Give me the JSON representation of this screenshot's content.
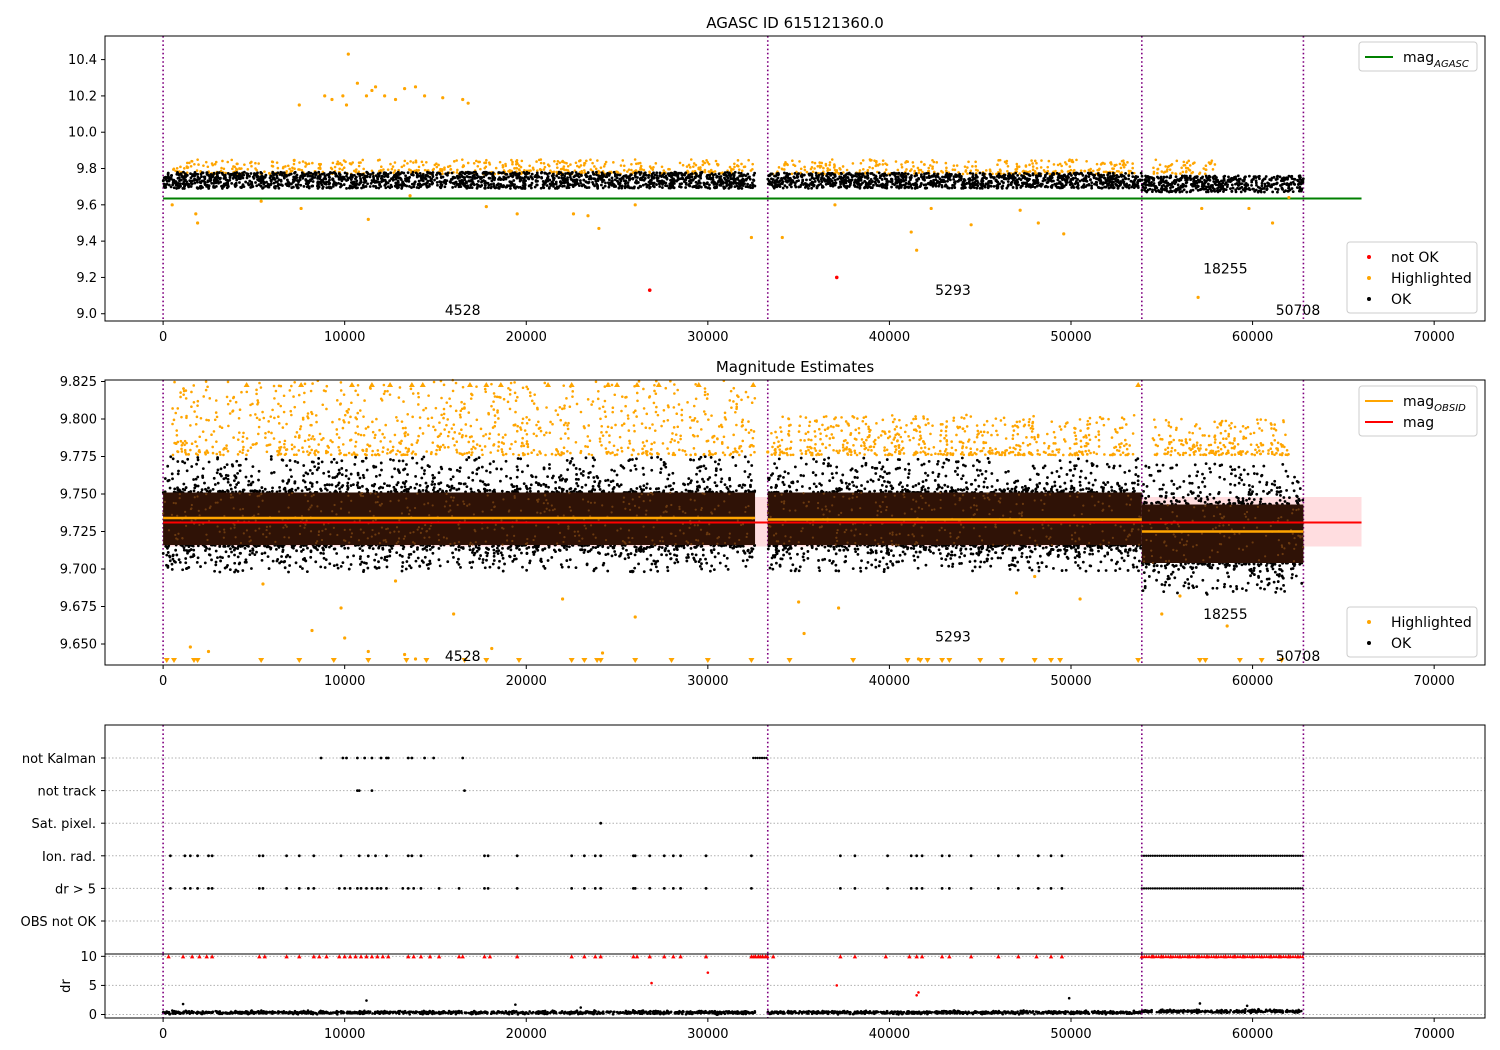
{
  "chart_data": [
    {
      "type": "scatter",
      "title": "AGASC ID 615121360.0",
      "xlim": [
        -3200,
        72800
      ],
      "ylim": [
        8.96,
        10.53
      ],
      "xticks": [
        0,
        10000,
        20000,
        30000,
        40000,
        50000,
        60000,
        70000
      ],
      "yticks": [
        9.0,
        9.2,
        9.4,
        9.6,
        9.8,
        10.0,
        10.2,
        10.4
      ],
      "ytick_decimals": 1,
      "vlines": [
        0,
        33300,
        53900,
        62800
      ],
      "segments": [
        {
          "x0": 0,
          "x1": 32600,
          "center": 9.735,
          "width": 0.1
        },
        {
          "x0": 33300,
          "x1": 53900,
          "center": 9.733,
          "width": 0.095
        },
        {
          "x0": 53900,
          "x1": 62800,
          "center": 9.715,
          "width": 0.1
        }
      ],
      "hline": {
        "y": 9.635,
        "x0": 0,
        "x1": 66000,
        "color": "#008000"
      },
      "obsid_labels": [
        {
          "text": "4528",
          "x": 16500,
          "y": 9.02
        },
        {
          "text": "5293",
          "x": 43500,
          "y": 9.13
        },
        {
          "text": "18255",
          "x": 58500,
          "y": 9.25
        },
        {
          "text": "50708",
          "x": 62500,
          "y": 9.02
        }
      ],
      "highlighted_upper": {
        "y0": 9.77,
        "y1": 9.85,
        "x_ranges": [
          [
            500,
            32600
          ],
          [
            33500,
            53500
          ],
          [
            54500,
            58000
          ]
        ]
      },
      "outliers_highlighted": [
        [
          7500,
          10.15
        ],
        [
          8900,
          10.2
        ],
        [
          9300,
          10.18
        ],
        [
          9900,
          10.2
        ],
        [
          10100,
          10.15
        ],
        [
          10200,
          10.43
        ],
        [
          10700,
          10.27
        ],
        [
          11200,
          10.2
        ],
        [
          11500,
          10.23
        ],
        [
          11700,
          10.25
        ],
        [
          12200,
          10.2
        ],
        [
          12800,
          10.18
        ],
        [
          13300,
          10.24
        ],
        [
          13900,
          10.25
        ],
        [
          14400,
          10.2
        ],
        [
          15400,
          10.19
        ],
        [
          16500,
          10.18
        ],
        [
          16800,
          10.16
        ],
        [
          500,
          9.6
        ],
        [
          1800,
          9.55
        ],
        [
          1900,
          9.5
        ],
        [
          5400,
          9.62
        ],
        [
          7600,
          9.58
        ],
        [
          11300,
          9.52
        ],
        [
          13600,
          9.65
        ],
        [
          17800,
          9.59
        ],
        [
          19500,
          9.55
        ],
        [
          22600,
          9.55
        ],
        [
          23400,
          9.54
        ],
        [
          24000,
          9.47
        ],
        [
          26000,
          9.6
        ],
        [
          32400,
          9.42
        ],
        [
          34100,
          9.42
        ],
        [
          37000,
          9.6
        ],
        [
          41200,
          9.45
        ],
        [
          41500,
          9.35
        ],
        [
          42300,
          9.58
        ],
        [
          44500,
          9.49
        ],
        [
          47200,
          9.57
        ],
        [
          48200,
          9.5
        ],
        [
          49600,
          9.44
        ],
        [
          57000,
          9.09
        ],
        [
          57200,
          9.58
        ],
        [
          59800,
          9.58
        ],
        [
          61100,
          9.5
        ],
        [
          62000,
          9.64
        ]
      ],
      "outliers_notok": [
        [
          26800,
          9.13
        ],
        [
          37100,
          9.2
        ]
      ],
      "legends": [
        {
          "position": "upper-right",
          "entries": [
            {
              "label": "mag",
              "sub": "AGASC",
              "kind": "line",
              "color": "#008000"
            }
          ]
        },
        {
          "position": "lower-right",
          "entries": [
            {
              "label": "not OK",
              "kind": "dot",
              "color": "#ff0000"
            },
            {
              "label": "Highlighted",
              "kind": "dot",
              "color": "#ffa500"
            },
            {
              "label": "OK",
              "kind": "dot",
              "color": "#000000"
            }
          ]
        }
      ]
    },
    {
      "type": "scatter",
      "title": "Magnitude Estimates",
      "xlim": [
        -3200,
        72800
      ],
      "ylim": [
        9.636,
        9.826
      ],
      "xticks": [
        0,
        10000,
        20000,
        30000,
        40000,
        50000,
        60000,
        70000
      ],
      "yticks": [
        9.65,
        9.675,
        9.7,
        9.725,
        9.75,
        9.775,
        9.8,
        9.825
      ],
      "ytick_decimals": 3,
      "vlines": [
        0,
        33300,
        53900,
        62800
      ],
      "mag_band": {
        "x0": 0,
        "x1": 66000,
        "center": 9.731,
        "low": 9.715,
        "high": 9.748
      },
      "mag_obsid": [
        {
          "x0": 0,
          "x1": 32600,
          "y": 9.734
        },
        {
          "x0": 33300,
          "x1": 53900,
          "y": 9.733
        },
        {
          "x0": 53900,
          "x1": 62800,
          "y": 9.725
        }
      ],
      "segments": [
        {
          "x0": 0,
          "x1": 32600,
          "core_low": 9.716,
          "core_high": 9.751,
          "spread_low": 9.698,
          "spread_high": 9.775
        },
        {
          "x0": 33300,
          "x1": 53900,
          "core_low": 9.716,
          "core_high": 9.751,
          "spread_low": 9.698,
          "spread_high": 9.774
        },
        {
          "x0": 53900,
          "x1": 62800,
          "core_low": 9.704,
          "core_high": 9.743,
          "spread_low": 9.683,
          "spread_high": 9.771
        }
      ],
      "highlighted_upper": [
        {
          "x0": 500,
          "x1": 32600,
          "y0": 9.776,
          "y1": 9.826
        },
        {
          "x0": 33500,
          "x1": 53500,
          "y0": 9.776,
          "y1": 9.803
        },
        {
          "x0": 54500,
          "x1": 62000,
          "y0": 9.776,
          "y1": 9.8
        }
      ],
      "triangles_down": [
        200,
        600,
        1700,
        1900,
        5400,
        7500,
        9400,
        11300,
        13400,
        14500,
        16600,
        17800,
        19600,
        22500,
        23200,
        23900,
        24100,
        26000,
        28000,
        30000,
        32400,
        34500,
        38000,
        41000,
        41700,
        42100,
        42900,
        43300,
        45000,
        46200,
        48000,
        48900,
        49400,
        53700,
        57100,
        57400,
        59300,
        60500,
        61600
      ],
      "triangles_up": [
        4600,
        7600,
        10400,
        11500,
        12500,
        13700,
        14300,
        16900,
        17800,
        18600,
        21200,
        22500,
        24500,
        25000,
        26100,
        27300,
        29500,
        32500,
        53700
      ],
      "obsid_labels": [
        {
          "text": "4528",
          "x": 16500,
          "y": 9.642
        },
        {
          "text": "5293",
          "x": 43500,
          "y": 9.655
        },
        {
          "text": "18255",
          "x": 58500,
          "y": 9.67
        },
        {
          "text": "50708",
          "x": 62500,
          "y": 9.642
        }
      ],
      "outliers_highlighted": [
        [
          1500,
          9.648
        ],
        [
          2500,
          9.645
        ],
        [
          5500,
          9.69
        ],
        [
          8200,
          9.659
        ],
        [
          9800,
          9.674
        ],
        [
          10000,
          9.654
        ],
        [
          11300,
          9.645
        ],
        [
          12800,
          9.692
        ],
        [
          13300,
          9.643
        ],
        [
          13900,
          9.64
        ],
        [
          16000,
          9.67
        ],
        [
          18100,
          9.647
        ],
        [
          22000,
          9.68
        ],
        [
          24200,
          9.644
        ],
        [
          26000,
          9.668
        ],
        [
          33300,
          9.778
        ],
        [
          35000,
          9.678
        ],
        [
          35300,
          9.657
        ],
        [
          37200,
          9.674
        ],
        [
          41600,
          9.64
        ],
        [
          47000,
          9.684
        ],
        [
          48000,
          9.695
        ],
        [
          50500,
          9.68
        ],
        [
          55000,
          9.67
        ],
        [
          56000,
          9.682
        ],
        [
          58600,
          9.662
        ]
      ],
      "legends": [
        {
          "position": "upper-right",
          "entries": [
            {
              "label": "mag",
              "sub": "OBSID",
              "kind": "line",
              "color": "#ffa500"
            },
            {
              "label": "mag",
              "kind": "line",
              "color": "#ff0000"
            }
          ]
        },
        {
          "position": "lower-right",
          "entries": [
            {
              "label": "Highlighted",
              "kind": "dot",
              "color": "#ffa500"
            },
            {
              "label": "OK",
              "kind": "dot",
              "color": "#000000"
            }
          ]
        }
      ]
    },
    {
      "type": "scatter",
      "title": "",
      "xlim": [
        -3200,
        72800
      ],
      "xticks": [
        0,
        10000,
        20000,
        30000,
        40000,
        50000,
        60000,
        70000
      ],
      "vlines": [
        0,
        33300,
        53900,
        62800
      ],
      "flag_rows": [
        "not Kalman",
        "not track",
        "Sat. pixel.",
        "Ion. rad.",
        "dr > 5",
        "OBS not OK"
      ],
      "flag_points": {
        "not Kalman": [
          8700,
          9900,
          10100,
          10700,
          11100,
          11500,
          12000,
          12300,
          12400,
          13500,
          13700,
          14400,
          14900,
          16500
        ],
        "not track": [
          10700,
          10800,
          11500,
          16600
        ],
        "Sat. pixel.": [
          24100
        ],
        "Ion. rad.": [
          400,
          1200,
          1500,
          1900,
          2500,
          2700,
          5300,
          5500,
          6800,
          7500,
          8300,
          9800,
          10800,
          11300,
          11700,
          12300,
          13500,
          13700,
          14200,
          17700,
          17900,
          19500,
          22500,
          23200,
          23800,
          24100,
          25900,
          26000,
          26800,
          27600,
          28100,
          28500,
          29900,
          32400,
          37300,
          38100,
          39900,
          41200,
          41500,
          41800,
          42900,
          43300,
          44500,
          46000,
          47100,
          48200,
          48900,
          49500
        ],
        "dr > 5": [
          400,
          1200,
          1500,
          1900,
          2500,
          2700,
          5300,
          5500,
          6800,
          7500,
          8000,
          8300,
          9700,
          10000,
          10300,
          10700,
          10900,
          11200,
          11500,
          11800,
          12000,
          12300,
          13200,
          13500,
          13800,
          14200,
          15200,
          16300,
          17700,
          17900,
          19500,
          22500,
          23200,
          23800,
          24100,
          25900,
          26000,
          26800,
          27600,
          28100,
          28500,
          29900,
          32400,
          37300,
          38100,
          39900,
          41200,
          41500,
          41800,
          42900,
          43300,
          44500,
          46000,
          47100,
          48200,
          48900,
          49500
        ],
        "OBS not OK": []
      },
      "flag_dense": [
        {
          "row": "not Kalman",
          "x0": 32500,
          "x1": 33300
        },
        {
          "row": "Ion. rad.",
          "x0": 53900,
          "x1": 62800
        },
        {
          "row": "dr > 5",
          "x0": 53900,
          "x1": 62800
        }
      ],
      "dr_panel": {
        "ylabel": "dr",
        "yticks": [
          0,
          5,
          10
        ],
        "ylim": [
          -0.6,
          10.4
        ],
        "capped_red": [
          300,
          1100,
          1600,
          2000,
          2400,
          2700,
          5300,
          5600,
          6800,
          7500,
          8300,
          8600,
          9000,
          9700,
          10000,
          10300,
          10600,
          10900,
          11200,
          11500,
          11800,
          12100,
          12400,
          13500,
          13800,
          14200,
          14700,
          15200,
          16300,
          16500,
          17700,
          18000,
          19500,
          22500,
          23200,
          23800,
          24100,
          25900,
          26100,
          26800,
          27600,
          28100,
          28500,
          29900,
          32400,
          32600,
          32800,
          33000,
          33200,
          33600,
          37300,
          38100,
          39800,
          41100,
          41500,
          41800,
          42900,
          43300,
          44500,
          46000,
          47100,
          48100,
          48900,
          49500,
          53900,
          54500,
          55000,
          55500,
          56000,
          56500,
          57000,
          57500,
          58000,
          58500,
          59000,
          59500,
          60000,
          60500,
          61000,
          61500,
          62000,
          62500
        ],
        "red_points": [
          [
            26900,
            5.4
          ],
          [
            30000,
            7.2
          ],
          [
            37100,
            5.0
          ],
          [
            41500,
            3.3
          ],
          [
            41600,
            3.8
          ]
        ],
        "black_spikes": [
          [
            1100,
            1.8
          ],
          [
            11200,
            2.4
          ],
          [
            19400,
            1.7
          ],
          [
            23000,
            1.2
          ],
          [
            49900,
            2.8
          ],
          [
            57100,
            1.9
          ],
          [
            59700,
            1.5
          ]
        ],
        "baseline": [
          {
            "x0": 0,
            "x1": 32600,
            "y": 0.35
          },
          {
            "x0": 33300,
            "x1": 53900,
            "y": 0.35
          },
          {
            "x0": 53900,
            "x1": 62800,
            "y": 0.55
          }
        ]
      }
    }
  ]
}
